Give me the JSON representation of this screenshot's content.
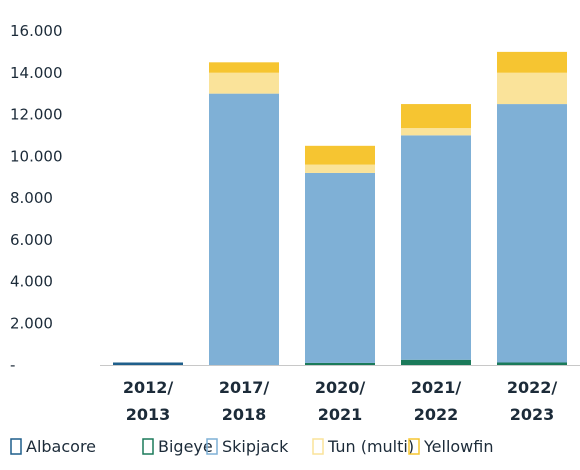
{
  "chart_data": {
    "type": "bar",
    "stacked": true,
    "categories": [
      [
        "2012/",
        "2013"
      ],
      [
        "2017/",
        "2018"
      ],
      [
        "2020/",
        "2021"
      ],
      [
        "2021/",
        "2022"
      ],
      [
        "2022/",
        "2023"
      ]
    ],
    "series": [
      {
        "name": "Albacore",
        "color": "#1f5f8b",
        "values": [
          120,
          0,
          0,
          0,
          0
        ]
      },
      {
        "name": "Bigeye",
        "color": "#1b7a5a",
        "values": [
          0,
          0,
          100,
          250,
          120
        ]
      },
      {
        "name": "Skipjack",
        "color": "#7fb0d6",
        "values": [
          0,
          13000,
          9100,
          10750,
          12380
        ]
      },
      {
        "name": "Tun (multi)",
        "color": "#fae39a",
        "values": [
          0,
          1000,
          400,
          350,
          1500
        ]
      },
      {
        "name": "Yellowfin",
        "color": "#f6c531",
        "values": [
          0,
          500,
          900,
          1150,
          1000
        ]
      }
    ],
    "ylim": [
      0,
      16000
    ],
    "yticks": [
      {
        "value": 0,
        "label": "-"
      },
      {
        "value": 2000,
        "label": "2.000"
      },
      {
        "value": 4000,
        "label": "4.000"
      },
      {
        "value": 6000,
        "label": "6.000"
      },
      {
        "value": 8000,
        "label": "8.000"
      },
      {
        "value": 10000,
        "label": "10.000"
      },
      {
        "value": 12000,
        "label": "12.000"
      },
      {
        "value": 14000,
        "label": "14.000"
      },
      {
        "value": 16000,
        "label": "16.000"
      }
    ],
    "grid": false,
    "legend": "bottom"
  }
}
